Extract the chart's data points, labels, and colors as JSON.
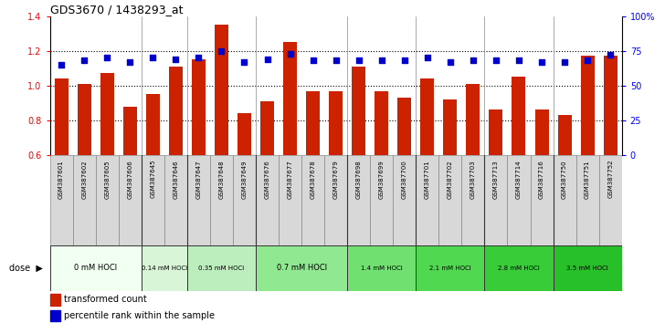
{
  "title": "GDS3670 / 1438293_at",
  "samples": [
    "GSM387601",
    "GSM387602",
    "GSM387605",
    "GSM387606",
    "GSM387645",
    "GSM387646",
    "GSM387647",
    "GSM387648",
    "GSM387649",
    "GSM387676",
    "GSM387677",
    "GSM387678",
    "GSM387679",
    "GSM387698",
    "GSM387699",
    "GSM387700",
    "GSM387701",
    "GSM387702",
    "GSM387703",
    "GSM387713",
    "GSM387714",
    "GSM387716",
    "GSM387750",
    "GSM387751",
    "GSM387752"
  ],
  "transformed_count": [
    1.04,
    1.01,
    1.07,
    0.88,
    0.95,
    1.11,
    1.15,
    1.35,
    0.84,
    0.91,
    1.25,
    0.97,
    0.97,
    1.11,
    0.97,
    0.93,
    1.04,
    0.92,
    1.01,
    0.86,
    1.05,
    0.86,
    0.83,
    1.17,
    1.17
  ],
  "percentile_pct": [
    65,
    68,
    70,
    67,
    70,
    69,
    70,
    75,
    67,
    69,
    73,
    68,
    68,
    68,
    68,
    68,
    70,
    67,
    68,
    68,
    68,
    67,
    67,
    68,
    72
  ],
  "ylim": [
    0.6,
    1.4
  ],
  "yticks": [
    0.6,
    0.8,
    1.0,
    1.2,
    1.4
  ],
  "bar_color": "#cc2200",
  "dot_color": "#0000cc",
  "dose_groups": [
    {
      "label": "0 mM HOCl",
      "start": 0,
      "end": 4,
      "bg": "#f0fff0"
    },
    {
      "label": "0.14 mM HOCl",
      "start": 4,
      "end": 6,
      "bg": "#d8f5d8"
    },
    {
      "label": "0.35 mM HOCl",
      "start": 6,
      "end": 9,
      "bg": "#bbeebc"
    },
    {
      "label": "0.7 mM HOCl",
      "start": 9,
      "end": 13,
      "bg": "#90e890"
    },
    {
      "label": "1.4 mM HOCl",
      "start": 13,
      "end": 16,
      "bg": "#70e070"
    },
    {
      "label": "2.1 mM HOCl",
      "start": 16,
      "end": 19,
      "bg": "#50d850"
    },
    {
      "label": "2.8 mM HOCl",
      "start": 19,
      "end": 22,
      "bg": "#38cc38"
    },
    {
      "label": "3.5 mM HOCl",
      "start": 22,
      "end": 25,
      "bg": "#28c028"
    }
  ],
  "xlab_bg": "#d8d8d8",
  "legend_transformed": "transformed count",
  "legend_percentile": "percentile rank within the sample",
  "right_yticks": [
    0,
    25,
    50,
    75,
    100
  ],
  "right_ylabels": [
    "0",
    "25",
    "50",
    "75",
    "100%"
  ],
  "dotted_lines": [
    0.8,
    1.0,
    1.2
  ]
}
